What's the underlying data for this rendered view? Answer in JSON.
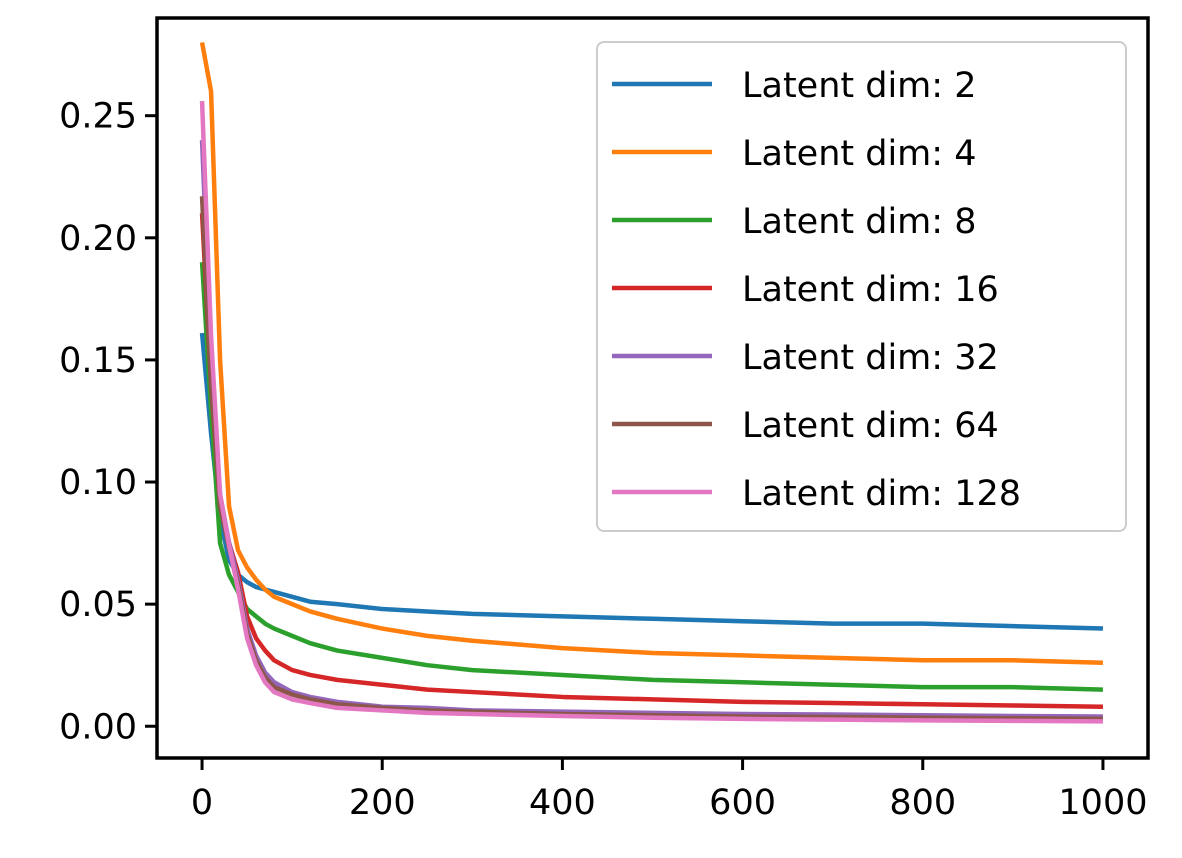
{
  "chart_data": {
    "type": "line",
    "title": "",
    "xlabel": "",
    "ylabel": "",
    "xlim": [
      -50,
      1050
    ],
    "ylim": [
      -0.013,
      0.29
    ],
    "xticks": [
      0,
      200,
      400,
      600,
      800,
      1000
    ],
    "xtick_labels": [
      "0",
      "200",
      "400",
      "600",
      "800",
      "1000"
    ],
    "yticks": [
      0.0,
      0.05,
      0.1,
      0.15,
      0.2,
      0.25
    ],
    "ytick_labels": [
      "0.00",
      "0.05",
      "0.10",
      "0.15",
      "0.20",
      "0.25"
    ],
    "grid": false,
    "legend_position": "top-right",
    "x": [
      0,
      10,
      20,
      30,
      40,
      50,
      60,
      70,
      80,
      100,
      120,
      150,
      200,
      250,
      300,
      400,
      500,
      600,
      700,
      800,
      900,
      1000
    ],
    "series": [
      {
        "name": "Latent dim: 2",
        "color": "#1f77b4",
        "values": [
          0.161,
          0.12,
          0.085,
          0.068,
          0.062,
          0.059,
          0.057,
          0.056,
          0.055,
          0.053,
          0.051,
          0.05,
          0.048,
          0.047,
          0.046,
          0.045,
          0.044,
          0.043,
          0.042,
          0.042,
          0.041,
          0.04
        ]
      },
      {
        "name": "Latent dim: 4",
        "color": "#ff7f0e",
        "values": [
          0.28,
          0.26,
          0.15,
          0.09,
          0.072,
          0.065,
          0.06,
          0.056,
          0.053,
          0.05,
          0.047,
          0.044,
          0.04,
          0.037,
          0.035,
          0.032,
          0.03,
          0.029,
          0.028,
          0.027,
          0.027,
          0.026
        ]
      },
      {
        "name": "Latent dim: 8",
        "color": "#2ca02c",
        "values": [
          0.19,
          0.13,
          0.075,
          0.062,
          0.055,
          0.048,
          0.045,
          0.042,
          0.04,
          0.037,
          0.034,
          0.031,
          0.028,
          0.025,
          0.023,
          0.021,
          0.019,
          0.018,
          0.017,
          0.016,
          0.016,
          0.015
        ]
      },
      {
        "name": "Latent dim: 16",
        "color": "#d62728",
        "values": [
          0.21,
          0.14,
          0.09,
          0.075,
          0.063,
          0.045,
          0.036,
          0.031,
          0.027,
          0.023,
          0.021,
          0.019,
          0.017,
          0.015,
          0.014,
          0.012,
          0.011,
          0.01,
          0.0095,
          0.009,
          0.0085,
          0.008
        ]
      },
      {
        "name": "Latent dim: 32",
        "color": "#9467bd",
        "values": [
          0.24,
          0.15,
          0.095,
          0.075,
          0.06,
          0.04,
          0.029,
          0.022,
          0.018,
          0.014,
          0.012,
          0.01,
          0.008,
          0.0075,
          0.0065,
          0.006,
          0.0055,
          0.005,
          0.0048,
          0.0045,
          0.0042,
          0.004
        ]
      },
      {
        "name": "Latent dim: 64",
        "color": "#8c564b",
        "values": [
          0.217,
          0.14,
          0.09,
          0.073,
          0.058,
          0.038,
          0.027,
          0.02,
          0.016,
          0.013,
          0.011,
          0.009,
          0.0075,
          0.0065,
          0.006,
          0.005,
          0.0045,
          0.004,
          0.0038,
          0.0035,
          0.0033,
          0.003
        ]
      },
      {
        "name": "Latent dim: 128",
        "color": "#e377c2",
        "values": [
          0.256,
          0.16,
          0.095,
          0.074,
          0.056,
          0.036,
          0.025,
          0.018,
          0.014,
          0.011,
          0.0095,
          0.0075,
          0.0065,
          0.0055,
          0.005,
          0.0042,
          0.0035,
          0.003,
          0.0027,
          0.0024,
          0.0022,
          0.002
        ]
      }
    ]
  }
}
